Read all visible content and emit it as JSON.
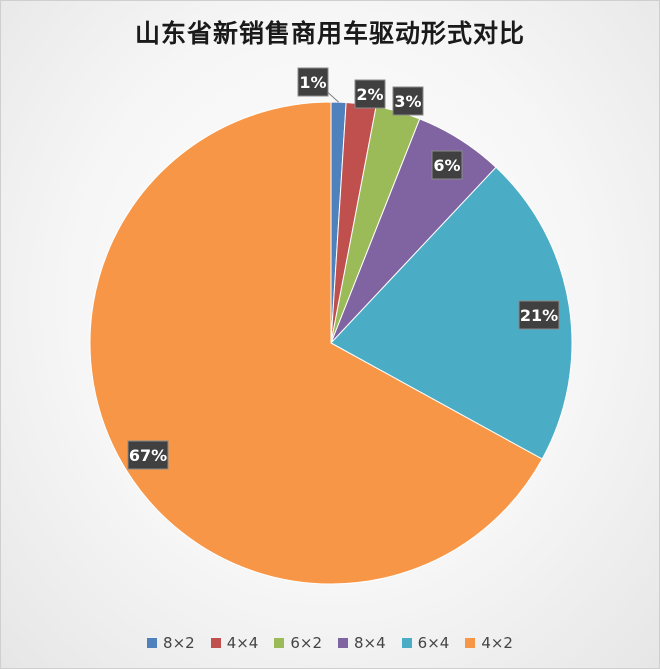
{
  "chart_data": {
    "type": "pie",
    "title": "山东省新销售商用车驱动形式对比",
    "categories": [
      "8×2",
      "4×4",
      "6×2",
      "8×4",
      "6×4",
      "4×2"
    ],
    "values": [
      1,
      2,
      3,
      6,
      21,
      67
    ],
    "labels": [
      "1%",
      "2%",
      "3%",
      "6%",
      "21%",
      "67%"
    ],
    "colors": [
      "#4f81bd",
      "#c0504d",
      "#9bbb59",
      "#8064a2",
      "#4bacc6",
      "#f79646"
    ],
    "legend_position": "bottom"
  }
}
